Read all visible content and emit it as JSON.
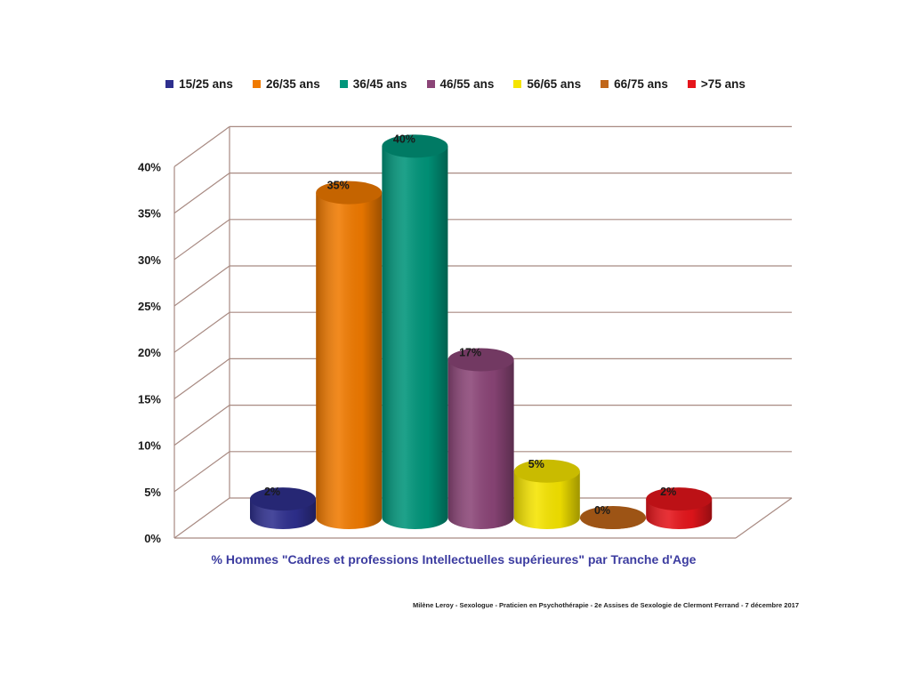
{
  "chart_data": {
    "type": "bar",
    "title": "",
    "xlabel": "% Hommes \"Cadres et professions Intellectuelles supérieures\" par Tranche d'Age",
    "ylabel": "",
    "ylim": [
      0,
      40
    ],
    "yticks": [
      "0%",
      "5%",
      "10%",
      "15%",
      "20%",
      "25%",
      "30%",
      "35%",
      "40%"
    ],
    "grid": true,
    "legend_placement": "top",
    "categories": [
      "15/25 ans",
      "26/35 ans",
      "36/45 ans",
      "46/55 ans",
      "56/65 ans",
      "66/75 ans",
      ">75 ans"
    ],
    "values": [
      2,
      35,
      40,
      17,
      5,
      0,
      2
    ],
    "data_labels": [
      "2%",
      "35%",
      "40%",
      "17%",
      "5%",
      "0%",
      "2%"
    ],
    "colors": [
      "#2e2f8e",
      "#f07a00",
      "#00957a",
      "#8b4577",
      "#f5e400",
      "#c0661a",
      "#e5151b"
    ]
  },
  "footer": "Milène Leroy - Sexologue - Praticien en Psychothérapie - 2e Assises de Sexologie de Clermont Ferrand - 7 décembre 2017"
}
